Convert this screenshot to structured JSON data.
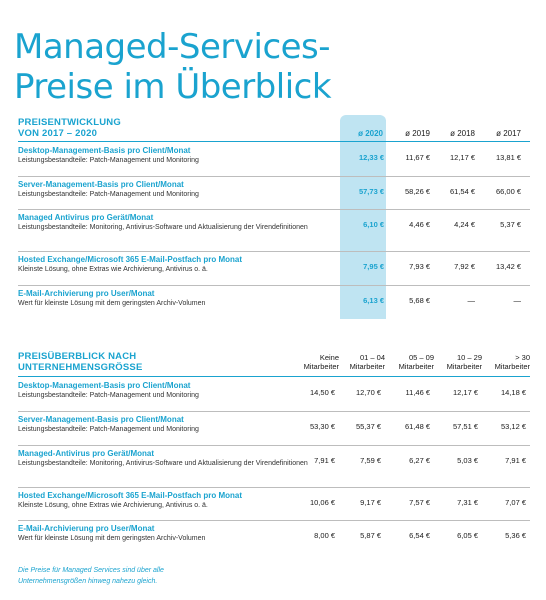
{
  "title": {
    "line1": "Managed-Services-",
    "line2": "Preise im Überblick"
  },
  "table1": {
    "heading_line1": "PREISENTWICKLUNG",
    "heading_line2": "VON 2017 – 2020",
    "years": [
      "ø 2020",
      "ø 2019",
      "ø 2018",
      "ø 2017"
    ],
    "rows": [
      {
        "title": "Desktop-Management-Basis pro Client/Monat",
        "desc": "Leistungsbestandteile: Patch-Management und Monitoring",
        "values": [
          "12,33 €",
          "11,67 €",
          "12,17 €",
          "13,81 €"
        ]
      },
      {
        "title": "Server-Management-Basis pro Client/Monat",
        "desc": "Leistungsbestandteile: Patch-Management und Monitoring",
        "values": [
          "57,73 €",
          "58,26 €",
          "61,54 €",
          "66,00 €"
        ]
      },
      {
        "title": "Managed Antivirus pro Gerät/Monat",
        "desc": "Leistungsbestandteile: Monitoring, Antivirus-Software und Aktualisierung der Virendefinitionen",
        "values": [
          "6,10 €",
          "4,46 €",
          "4,24 €",
          "5,37 €"
        ]
      },
      {
        "title": "Hosted Exchange/Microsoft 365 E-Mail-Postfach pro Monat",
        "desc": "Kleinste Lösung, ohne Extras wie Archivierung, Antivirus o. ä.",
        "values": [
          "7,95 €",
          "7,93 €",
          "7,92 €",
          "13,42 €"
        ]
      },
      {
        "title": "E-Mail-Archivierung pro User/Monat",
        "desc": "Wert für kleinste Lösung mit dem geringsten Archiv-Volumen",
        "values": [
          "6,13 €",
          "5,68 €",
          "—",
          "—"
        ]
      }
    ]
  },
  "table2": {
    "heading_line1": "PREISÜBERBLICK NACH",
    "heading_line2": "UNTERNEHMENSGRÖSSE",
    "columns": [
      {
        "l1": "Keine",
        "l2": "Mitarbeiter"
      },
      {
        "l1": "01 – 04",
        "l2": "Mitarbeiter"
      },
      {
        "l1": "05 – 09",
        "l2": "Mitarbeiter"
      },
      {
        "l1": "10 – 29",
        "l2": "Mitarbeiter"
      },
      {
        "l1": "> 30",
        "l2": "Mitarbeiter"
      }
    ],
    "rows": [
      {
        "title": "Desktop-Management-Basis pro Client/Monat",
        "desc": "Leistungsbestandteile: Patch-Management und Monitoring",
        "values": [
          "14,50 €",
          "12,70 €",
          "11,46 €",
          "12,17 €",
          "14,18 €"
        ]
      },
      {
        "title": "Server-Management-Basis pro Client/Monat",
        "desc": "Leistungsbestandteile: Patch-Management und Monitoring",
        "values": [
          "53,30 €",
          "55,37 €",
          "61,48 €",
          "57,51 €",
          "53,12 €"
        ]
      },
      {
        "title": "Managed-Antivirus pro Gerät/Monat",
        "desc": "Leistungsbestandteile: Monitoring, Antivirus-Software und Aktualisierung der Virendefinitionen",
        "values": [
          "7,91 €",
          "7,59 €",
          "6,27 €",
          "5,03 €",
          "7,91 €"
        ]
      },
      {
        "title": "Hosted Exchange/Microsoft 365 E-Mail-Postfach pro Monat",
        "desc": "Kleinste Lösung, ohne Extras wie Archivierung, Antivirus o. ä.",
        "values": [
          "10,06 €",
          "9,17 €",
          "7,57 €",
          "7,31 €",
          "7,07 €"
        ]
      },
      {
        "title": "E-Mail-Archivierung pro User/Monat",
        "desc": "Wert für kleinste Lösung mit dem geringsten Archiv-Volumen",
        "values": [
          "8,00 €",
          "5,87 €",
          "6,54 €",
          "6,05 €",
          "5,36 €"
        ]
      }
    ]
  },
  "note": "Die Preise für Managed Services sind über alle Unternehmensgrößen hinweg nahezu gleich.",
  "colors": {
    "accent": "#1aa3cf",
    "highlight": "#bfe4f2",
    "rule": "#bdbdbd"
  }
}
